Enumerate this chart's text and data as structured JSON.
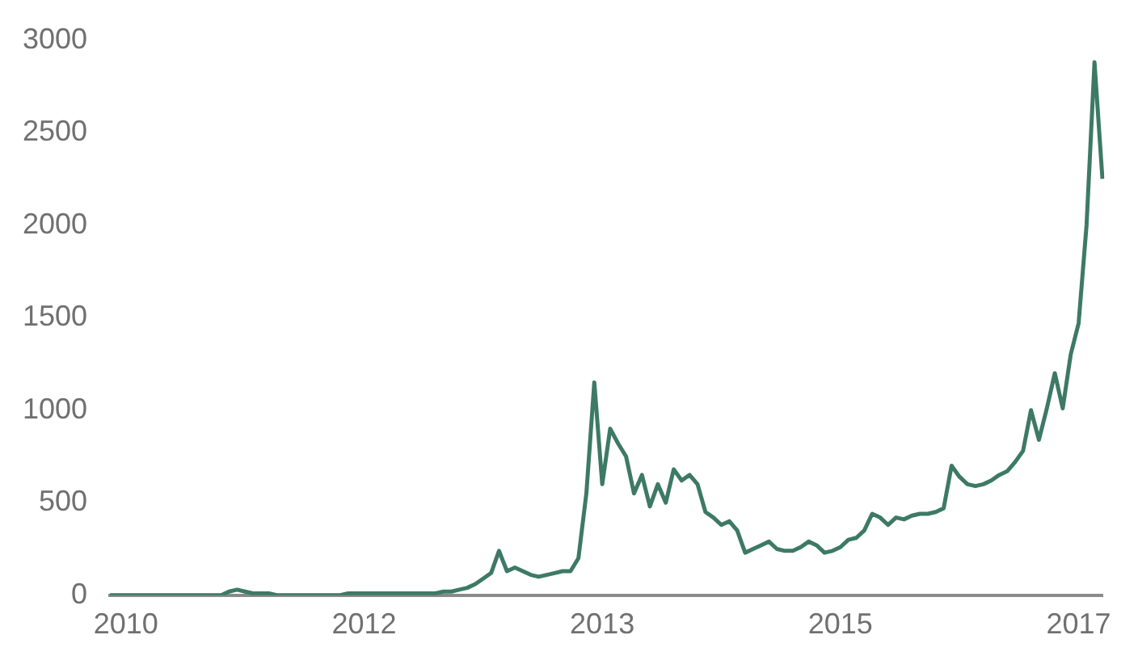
{
  "chart_data": {
    "type": "line",
    "categories": [
      null,
      null,
      "2010",
      null,
      null,
      null,
      null,
      null,
      null,
      null,
      null,
      null,
      null,
      null,
      null,
      null,
      null,
      null,
      null,
      null,
      null,
      null,
      null,
      null,
      null,
      null,
      null,
      null,
      null,
      null,
      null,
      null,
      "2012",
      null,
      null,
      null,
      null,
      null,
      null,
      null,
      null,
      null,
      null,
      null,
      null,
      null,
      null,
      null,
      null,
      null,
      null,
      null,
      null,
      null,
      null,
      null,
      null,
      null,
      null,
      null,
      null,
      null,
      "2013",
      null,
      null,
      null,
      null,
      null,
      null,
      null,
      null,
      null,
      null,
      null,
      null,
      null,
      null,
      null,
      null,
      null,
      null,
      null,
      null,
      null,
      null,
      null,
      null,
      null,
      null,
      null,
      null,
      null,
      "2015",
      null,
      null,
      null,
      null,
      null,
      null,
      null,
      null,
      null,
      null,
      null,
      null,
      null,
      null,
      null,
      null,
      null,
      null,
      null,
      null,
      null,
      null,
      null,
      null,
      null,
      null,
      null,
      null,
      null,
      "2017",
      null,
      null,
      null
    ],
    "series": [
      {
        "color": "#3d7a65",
        "values": [
          0,
          0,
          0,
          0,
          0,
          0,
          0,
          0,
          0,
          0,
          0,
          0,
          0,
          0,
          0,
          20,
          30,
          20,
          10,
          10,
          10,
          0,
          0,
          0,
          0,
          0,
          0,
          0,
          0,
          0,
          10,
          10,
          10,
          10,
          10,
          10,
          10,
          10,
          10,
          10,
          10,
          10,
          20,
          20,
          30,
          40,
          60,
          90,
          120,
          240,
          130,
          150,
          130,
          110,
          100,
          110,
          120,
          130,
          130,
          200,
          550,
          1150,
          600,
          900,
          820,
          750,
          550,
          650,
          480,
          600,
          500,
          680,
          620,
          650,
          600,
          450,
          420,
          380,
          400,
          350,
          230,
          250,
          270,
          290,
          250,
          240,
          240,
          260,
          290,
          270,
          230,
          240,
          260,
          300,
          310,
          350,
          440,
          420,
          380,
          420,
          410,
          430,
          440,
          440,
          450,
          470,
          700,
          640,
          600,
          590,
          600,
          620,
          650,
          670,
          720,
          780,
          1000,
          840,
          1010,
          1200,
          1010,
          1300,
          1470,
          2000,
          2880,
          2250
        ]
      }
    ],
    "ylim": [
      0,
      3000
    ],
    "yticks": [
      0,
      500,
      1000,
      1500,
      2000,
      2500,
      3000
    ],
    "grid": false,
    "legend": false,
    "marker": "none",
    "line_style": "solid"
  }
}
